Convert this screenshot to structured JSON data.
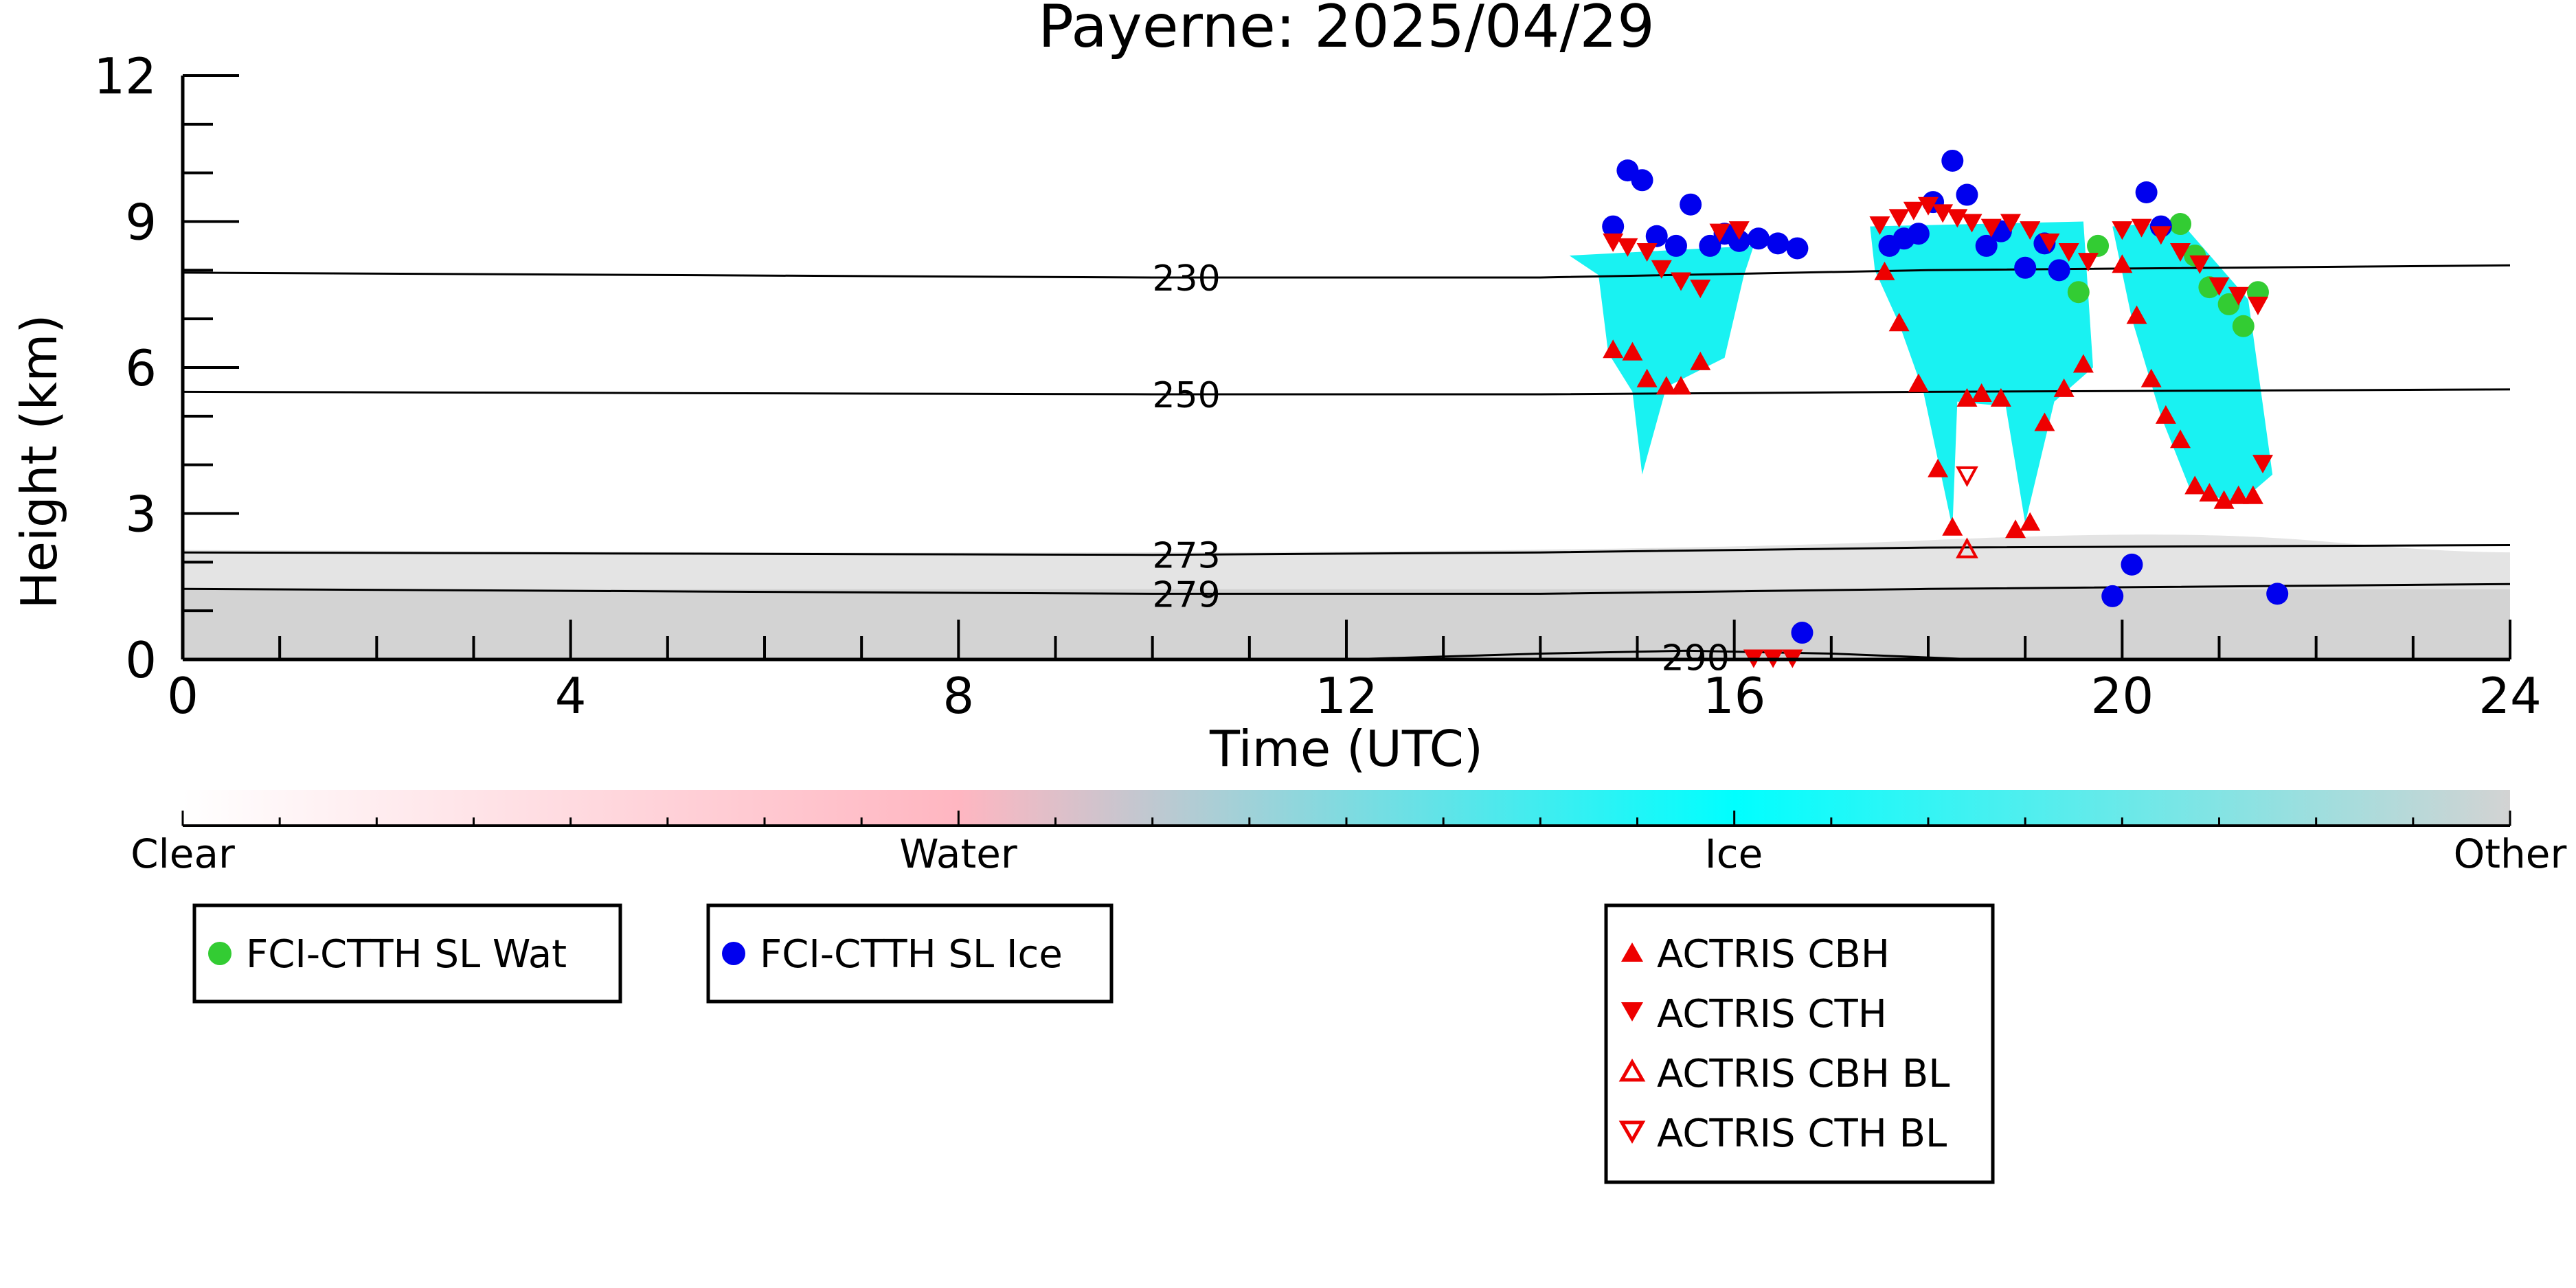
{
  "chart_data": {
    "type": "scatter",
    "title": "Payerne: 2025/04/29",
    "xlabel": "Time (UTC)",
    "ylabel": "Height (km)",
    "xlim": [
      0,
      24
    ],
    "ylim": [
      0,
      12
    ],
    "x_ticks": [
      0,
      4,
      8,
      12,
      16,
      20,
      24
    ],
    "y_ticks": [
      0,
      3,
      6,
      9,
      12
    ],
    "x_tick_labels": [
      "0",
      "4",
      "8",
      "12",
      "16",
      "20",
      "24"
    ],
    "y_tick_labels": [
      "0",
      "3",
      "6",
      "9",
      "12"
    ],
    "grid": false,
    "isotherms": [
      {
        "label": "230",
        "points": [
          [
            0,
            7.95
          ],
          [
            10,
            7.85
          ],
          [
            14,
            7.85
          ],
          [
            18,
            8.0
          ],
          [
            24,
            8.1
          ]
        ]
      },
      {
        "label": "250",
        "points": [
          [
            0,
            5.5
          ],
          [
            10,
            5.45
          ],
          [
            14,
            5.45
          ],
          [
            18,
            5.5
          ],
          [
            24,
            5.55
          ]
        ]
      },
      {
        "label": "273",
        "points": [
          [
            0,
            2.2
          ],
          [
            10,
            2.15
          ],
          [
            14,
            2.2
          ],
          [
            18,
            2.3
          ],
          [
            24,
            2.35
          ]
        ]
      },
      {
        "label": "279",
        "points": [
          [
            0,
            1.45
          ],
          [
            10,
            1.35
          ],
          [
            14,
            1.35
          ],
          [
            18,
            1.45
          ],
          [
            24,
            1.55
          ]
        ]
      },
      {
        "label": "290",
        "points": [
          [
            12,
            0.0
          ],
          [
            14,
            0.12
          ],
          [
            15.5,
            0.18
          ],
          [
            17,
            0.12
          ],
          [
            18.5,
            0.0
          ]
        ]
      }
    ],
    "cloud_phase_legend": {
      "labels": [
        "Clear",
        "Water",
        "Ice",
        "Other"
      ],
      "colors": [
        "#ffffff",
        "#ffb6c1",
        "#00ffff",
        "#d3d3d3"
      ]
    },
    "series": [
      {
        "name": "FCI-CTTH SL Wat",
        "color": "#33cc33",
        "marker": "circle",
        "points": [
          [
            19.75,
            8.5
          ],
          [
            20.6,
            8.95
          ],
          [
            20.75,
            8.3
          ],
          [
            20.9,
            7.65
          ],
          [
            21.1,
            7.3
          ],
          [
            21.25,
            6.85
          ],
          [
            21.4,
            7.55
          ],
          [
            19.55,
            7.55
          ]
        ]
      },
      {
        "name": "FCI-CTTH SL Ice",
        "color": "#0000ee",
        "marker": "circle",
        "points": [
          [
            14.75,
            8.9
          ],
          [
            14.9,
            10.05
          ],
          [
            15.05,
            9.85
          ],
          [
            15.2,
            8.7
          ],
          [
            15.4,
            8.5
          ],
          [
            15.55,
            9.35
          ],
          [
            15.75,
            8.5
          ],
          [
            15.9,
            8.75
          ],
          [
            16.05,
            8.6
          ],
          [
            16.25,
            8.65
          ],
          [
            16.45,
            8.55
          ],
          [
            16.65,
            8.45
          ],
          [
            17.6,
            8.5
          ],
          [
            17.75,
            8.65
          ],
          [
            17.9,
            8.75
          ],
          [
            18.05,
            9.4
          ],
          [
            18.25,
            10.25
          ],
          [
            18.4,
            9.55
          ],
          [
            18.6,
            8.5
          ],
          [
            18.75,
            8.8
          ],
          [
            19.0,
            8.05
          ],
          [
            19.2,
            8.55
          ],
          [
            19.35,
            8.0
          ],
          [
            20.25,
            9.6
          ],
          [
            20.4,
            8.9
          ],
          [
            19.9,
            1.3
          ],
          [
            20.1,
            1.95
          ],
          [
            21.6,
            1.35
          ],
          [
            16.7,
            0.55
          ]
        ]
      },
      {
        "name": "ACTRIS CBH",
        "color": "#ee0000",
        "marker": "triangle-up",
        "points": [
          [
            14.75,
            6.35
          ],
          [
            14.95,
            6.3
          ],
          [
            15.1,
            5.75
          ],
          [
            15.3,
            5.6
          ],
          [
            15.45,
            5.6
          ],
          [
            15.65,
            6.1
          ],
          [
            17.55,
            7.95
          ],
          [
            17.7,
            6.9
          ],
          [
            17.9,
            5.65
          ],
          [
            18.1,
            3.9
          ],
          [
            18.25,
            2.7
          ],
          [
            18.4,
            5.35
          ],
          [
            18.55,
            5.45
          ],
          [
            18.75,
            5.35
          ],
          [
            18.9,
            2.65
          ],
          [
            19.05,
            2.8
          ],
          [
            19.2,
            4.85
          ],
          [
            19.4,
            5.55
          ],
          [
            19.6,
            6.05
          ],
          [
            20.0,
            8.1
          ],
          [
            20.15,
            7.05
          ],
          [
            20.3,
            5.75
          ],
          [
            20.45,
            5.0
          ],
          [
            20.6,
            4.5
          ],
          [
            20.75,
            3.55
          ],
          [
            20.9,
            3.4
          ],
          [
            21.05,
            3.25
          ],
          [
            21.2,
            3.35
          ],
          [
            21.35,
            3.35
          ]
        ]
      },
      {
        "name": "ACTRIS CTH",
        "color": "#ee0000",
        "marker": "triangle-down",
        "points": [
          [
            14.75,
            8.6
          ],
          [
            14.9,
            8.5
          ],
          [
            15.1,
            8.4
          ],
          [
            15.25,
            8.05
          ],
          [
            15.45,
            7.8
          ],
          [
            15.65,
            7.65
          ],
          [
            15.85,
            8.8
          ],
          [
            16.05,
            8.85
          ],
          [
            17.5,
            8.95
          ],
          [
            17.7,
            9.1
          ],
          [
            17.85,
            9.25
          ],
          [
            18.0,
            9.35
          ],
          [
            18.15,
            9.2
          ],
          [
            18.3,
            9.1
          ],
          [
            18.45,
            9.0
          ],
          [
            18.65,
            8.9
          ],
          [
            18.85,
            9.0
          ],
          [
            19.05,
            8.85
          ],
          [
            19.25,
            8.6
          ],
          [
            19.45,
            8.4
          ],
          [
            19.65,
            8.2
          ],
          [
            20.0,
            8.85
          ],
          [
            20.2,
            8.9
          ],
          [
            20.4,
            8.75
          ],
          [
            20.6,
            8.4
          ],
          [
            20.8,
            8.15
          ],
          [
            21.0,
            7.7
          ],
          [
            21.2,
            7.5
          ],
          [
            21.4,
            7.3
          ],
          [
            21.45,
            4.05
          ],
          [
            16.2,
            0.05
          ],
          [
            16.4,
            0.05
          ],
          [
            16.6,
            0.05
          ]
        ]
      },
      {
        "name": "ACTRIS CBH BL",
        "color": "#ee0000",
        "marker": "triangle-up-open",
        "points": [
          [
            18.4,
            2.25
          ]
        ]
      },
      {
        "name": "ACTRIS CTH BL",
        "color": "#ee0000",
        "marker": "triangle-down-open",
        "points": [
          [
            18.4,
            3.8
          ]
        ]
      }
    ]
  }
}
